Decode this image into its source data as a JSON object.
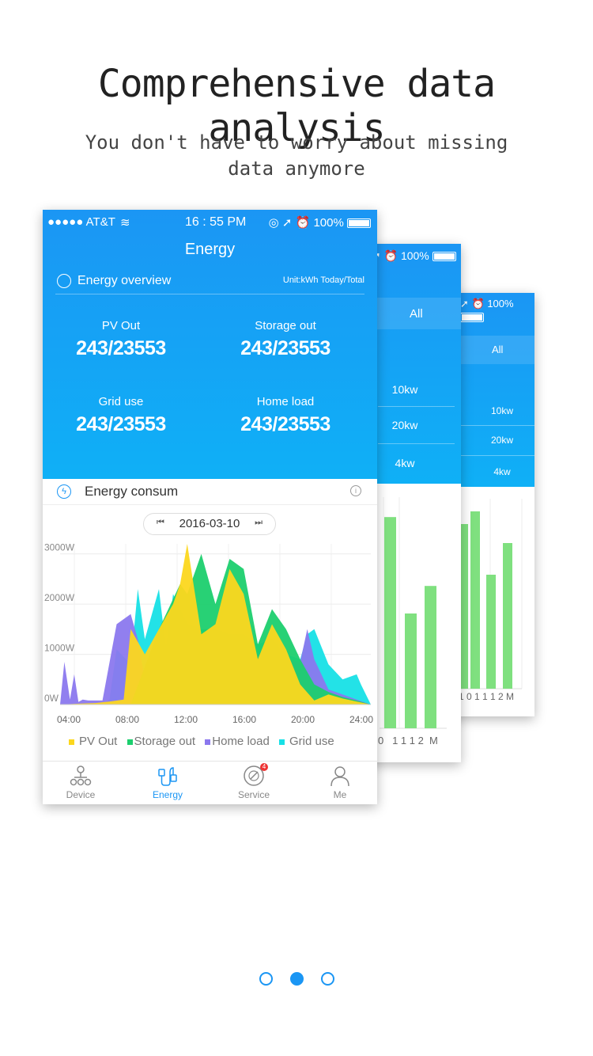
{
  "header": {
    "title": "Comprehensive data analysis",
    "subtitle": "You don't have to worry about missing data anymore"
  },
  "status_bar": {
    "carrier": "●●●●● AT&T",
    "time": "16 : 55 PM",
    "battery": "100%"
  },
  "app": {
    "title": "Energy",
    "overview_title": "Energy overview",
    "overview_unit": "Unit:kWh  Today/Total",
    "stats": [
      {
        "label": "PV Out",
        "value": "243/23553"
      },
      {
        "label": "Storage out",
        "value": "243/23553"
      },
      {
        "label": "Grid use",
        "value": "243/23553"
      },
      {
        "label": "Home load",
        "value": "243/23553"
      }
    ],
    "consum_title": "Energy consum",
    "date": "2016-03-10"
  },
  "tabs": [
    {
      "label": "Device",
      "icon": "device-tree-icon"
    },
    {
      "label": "Energy",
      "icon": "energy-plug-icon"
    },
    {
      "label": "Service",
      "icon": "service-gauge-icon",
      "badge": "4"
    },
    {
      "label": "Me",
      "icon": "person-icon"
    }
  ],
  "back_screen_1": {
    "battery": "100%",
    "filter": "All",
    "levels": [
      "10kw",
      "20kw",
      "4kw"
    ],
    "axis_ticks": "0   1 1 1 2  M"
  },
  "back_screen_2": {
    "battery": "100%",
    "filter": "All",
    "levels": [
      "10kw",
      "20kw",
      "4kw"
    ],
    "axis_ticks": "1 0    1 1 1 2  M"
  },
  "chart_data": {
    "type": "area",
    "title": "Energy consum",
    "x_categories": [
      "04:00",
      "08:00",
      "12:00",
      "16:00",
      "20:00",
      "24:00"
    ],
    "y_ticks": [
      "0W",
      "1000W",
      "2000W",
      "3000W"
    ],
    "ylim": [
      0,
      3200
    ],
    "series": [
      {
        "name": "PV Out",
        "color": "#fcd71d",
        "x": [
          3,
          4.5,
          5.5,
          6.5,
          7.5,
          8,
          9,
          10,
          11,
          11.5,
          12,
          13,
          14,
          15,
          16,
          17,
          18,
          19,
          20,
          21,
          22,
          23,
          24,
          25
        ],
        "y": [
          0,
          20,
          30,
          60,
          100,
          1500,
          1000,
          1500,
          2000,
          2400,
          3200,
          1400,
          1600,
          2700,
          2200,
          900,
          1600,
          1100,
          400,
          80,
          200,
          120,
          60,
          0
        ]
      },
      {
        "name": "Storage out",
        "color": "#1ccf6e",
        "x": [
          3,
          8,
          10,
          11.5,
          12,
          13,
          14,
          15,
          16,
          17,
          18,
          19,
          20,
          21,
          22,
          23,
          24,
          25
        ],
        "y": [
          0,
          0,
          1500,
          2400,
          2200,
          3000,
          2000,
          2900,
          2700,
          1200,
          1900,
          1500,
          900,
          400,
          250,
          150,
          80,
          0
        ]
      },
      {
        "name": "Home load",
        "color": "#8b78ee",
        "x": [
          3,
          3.3,
          3.7,
          4,
          4.3,
          4.6,
          5,
          6,
          7,
          8,
          8.5,
          9,
          10,
          11,
          12,
          13,
          14,
          15,
          16,
          17,
          18,
          19,
          20,
          20.5,
          21,
          21.5,
          22,
          23,
          24,
          25
        ],
        "y": [
          0,
          850,
          100,
          600,
          50,
          100,
          80,
          80,
          1600,
          1800,
          1300,
          500,
          1000,
          1400,
          1200,
          1300,
          1300,
          1200,
          1300,
          1000,
          1100,
          900,
          850,
          1500,
          900,
          600,
          300,
          200,
          100,
          0
        ]
      },
      {
        "name": "Grid use",
        "color": "#17e0e6",
        "x": [
          3,
          6,
          6.5,
          7,
          8,
          8.5,
          9,
          10,
          10.5,
          11,
          12,
          13,
          14,
          15,
          16,
          17,
          18,
          19,
          20,
          20.5,
          21,
          22,
          23,
          24,
          24.3,
          25
        ],
        "y": [
          0,
          0,
          100,
          1100,
          800,
          2300,
          1300,
          2300,
          1100,
          2200,
          1600,
          1500,
          1500,
          1400,
          1400,
          1200,
          1300,
          1000,
          900,
          1400,
          1500,
          800,
          500,
          600,
          400,
          0
        ]
      }
    ],
    "legend": "bottom"
  },
  "back_bars_1": {
    "type": "bar",
    "values": [
      2300,
      1250,
      1550
    ]
  },
  "back_bars_2": {
    "type": "bar",
    "values": [
      1300,
      1400,
      900,
      1150
    ]
  },
  "pager": {
    "count": 3,
    "active": 1
  },
  "colors": {
    "accent": "#1b96f4",
    "gridline": "#ececec"
  }
}
